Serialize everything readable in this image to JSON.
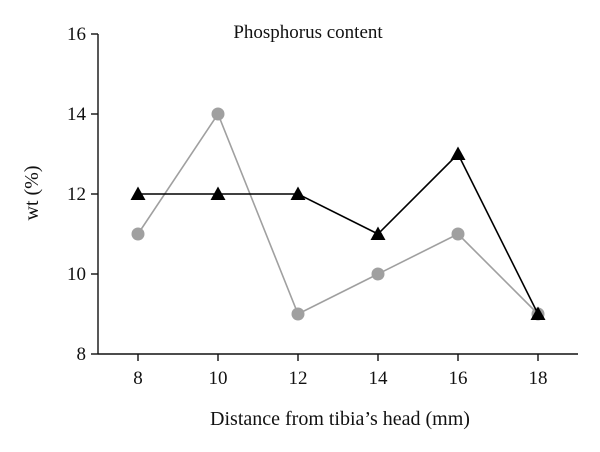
{
  "chart_data": {
    "type": "line",
    "title": "Phosphorus content",
    "xlabel": "Distance from tibia’s head (mm)",
    "ylabel": "wt (%)",
    "x": [
      8,
      10,
      12,
      14,
      16,
      18
    ],
    "xlim": [
      7,
      19
    ],
    "ylim": [
      8,
      16
    ],
    "xticks": [
      "8",
      "10",
      "12",
      "14",
      "16",
      "18"
    ],
    "yticks": [
      "8",
      "10",
      "12",
      "14",
      "16"
    ],
    "grid": false,
    "series": [
      {
        "values": [
          11,
          14,
          9,
          10,
          11,
          9
        ],
        "color": "#a0a0a0",
        "marker": "circle"
      },
      {
        "values": [
          12,
          12,
          12,
          11,
          13,
          9
        ],
        "color": "#000000",
        "marker": "triangle"
      }
    ]
  }
}
